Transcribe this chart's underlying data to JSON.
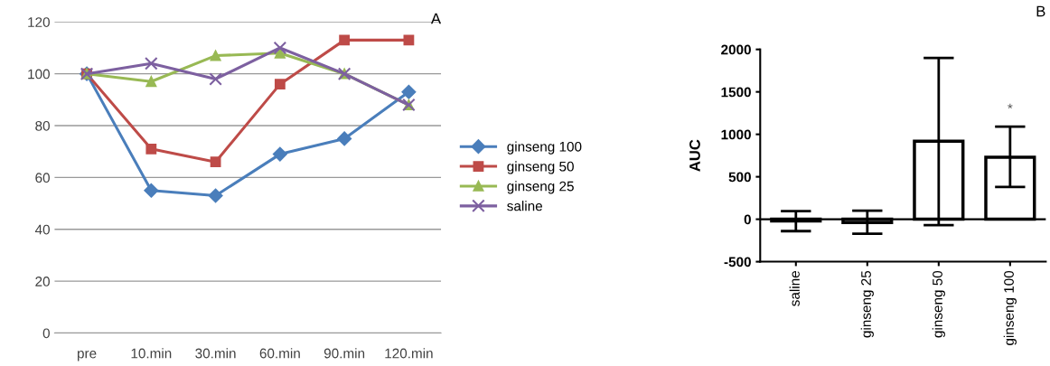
{
  "chart_data": [
    {
      "type": "line",
      "title": "A",
      "categories": [
        "pre",
        "10.min",
        "30.min",
        "60.min",
        "90.min",
        "120.min"
      ],
      "ylim": [
        0,
        120
      ],
      "yticks": [
        0,
        20,
        40,
        60,
        80,
        100,
        120
      ],
      "grid": "y",
      "legend": "right",
      "series": [
        {
          "name": "ginseng 100",
          "color": "#4a7ebb",
          "marker": "diamond",
          "values": [
            100,
            55,
            53,
            69,
            75,
            93
          ]
        },
        {
          "name": "ginseng 50",
          "color": "#be4b48",
          "marker": "square",
          "values": [
            100,
            71,
            66,
            96,
            113,
            113
          ]
        },
        {
          "name": "ginseng 25",
          "color": "#98b954",
          "marker": "triangle",
          "values": [
            100,
            97,
            107,
            108,
            100,
            88
          ]
        },
        {
          "name": "saline",
          "color": "#7d60a0",
          "marker": "cross",
          "values": [
            100,
            104,
            98,
            110,
            100,
            88
          ]
        }
      ]
    },
    {
      "type": "bar",
      "title": "B",
      "ylabel": "AUC",
      "categories": [
        "saline",
        "ginseng 25",
        "ginseng 50",
        "ginseng 100"
      ],
      "ylim": [
        -500,
        2000
      ],
      "yticks": [
        -500,
        0,
        500,
        1000,
        1500,
        2000
      ],
      "color": "#ffffff",
      "values": [
        -20,
        -40,
        920,
        730
      ],
      "errors": [
        [
          -140,
          95
        ],
        [
          -170,
          100
        ],
        [
          -70,
          1900
        ],
        [
          380,
          1090
        ]
      ],
      "annotations": [
        "*"
      ]
    }
  ]
}
